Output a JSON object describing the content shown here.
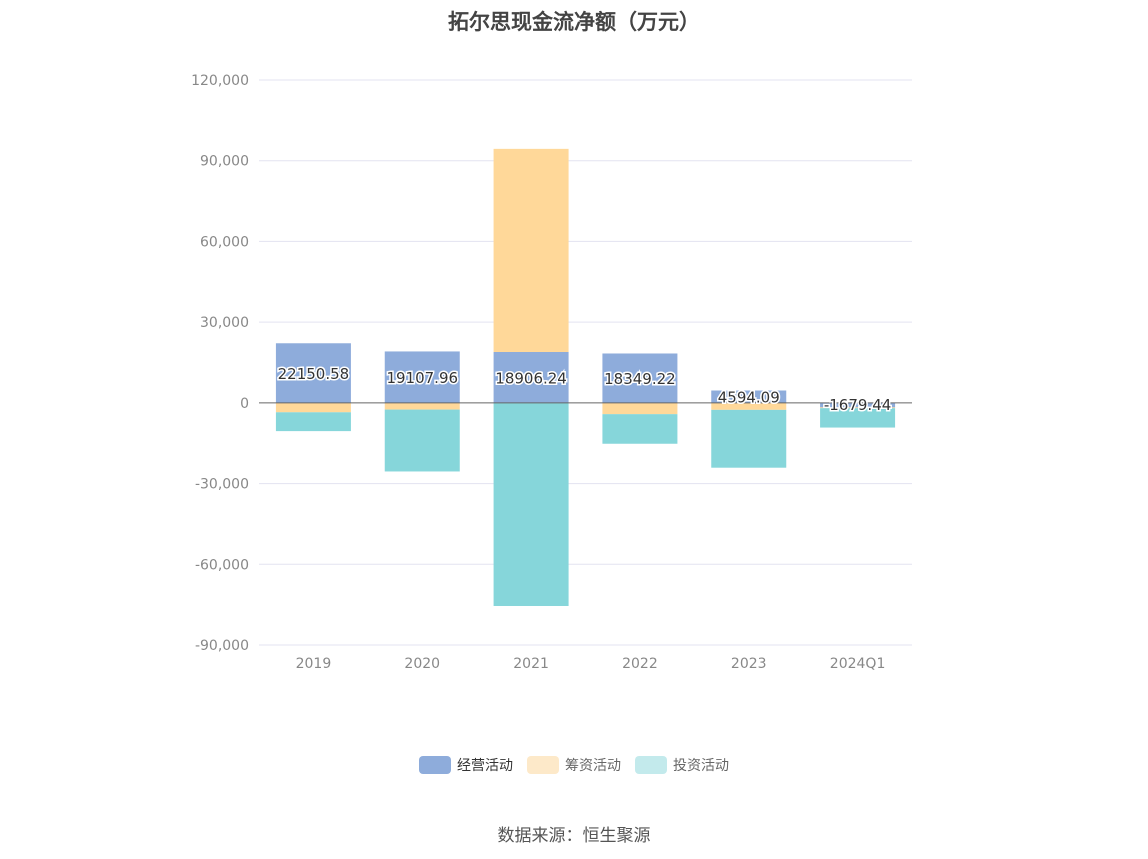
{
  "chart_data": {
    "type": "bar",
    "stacked": true,
    "title": "拓尔思现金流净额（万元）",
    "categories": [
      "2019",
      "2020",
      "2021",
      "2022",
      "2023",
      "2024Q1"
    ],
    "ylim": [
      -90000,
      120000
    ],
    "yticks": [
      120000,
      90000,
      60000,
      30000,
      0,
      -30000,
      -60000,
      -90000
    ],
    "ytick_labels": [
      "120,000",
      "90,000",
      "60,000",
      "30,000",
      "0",
      "-30,000",
      "-60,000",
      "-90,000"
    ],
    "grid": true,
    "legend_position": "bottom",
    "series": [
      {
        "name": "经营活动",
        "color": "#8eacdb",
        "values": [
          22150.58,
          19107.96,
          18906.24,
          18349.22,
          4594.09,
          -1679.44
        ],
        "labels": [
          "22150.58",
          "19107.96",
          "18906.24",
          "18349.22",
          "4594.09",
          "-1679.44"
        ]
      },
      {
        "name": "筹资活动",
        "color": "#ffd899",
        "values": [
          -3500,
          -2500,
          75500,
          -4200,
          -2600,
          -300
        ]
      },
      {
        "name": "投资活动",
        "color": "#86d6da",
        "values": [
          -7000,
          -23000,
          -75500,
          -11000,
          -21500,
          -7200
        ]
      }
    ],
    "legend_swatches": [
      "#8eacdb",
      "#fde9c9",
      "#c3eaec"
    ]
  },
  "source": "数据来源：恒生聚源"
}
